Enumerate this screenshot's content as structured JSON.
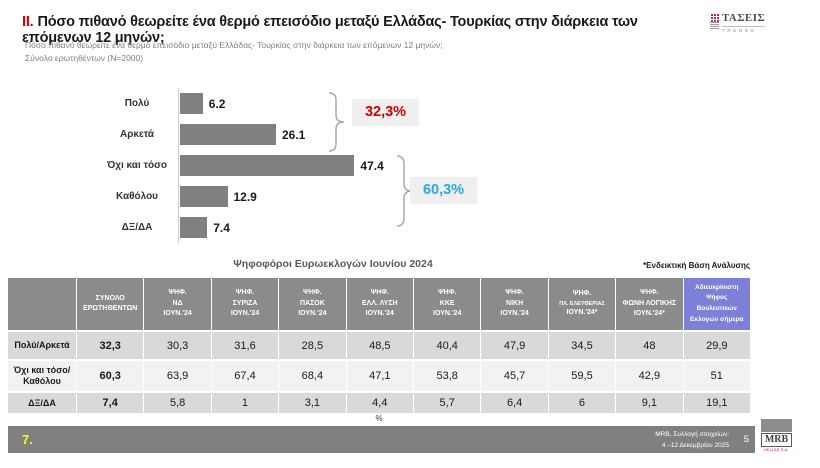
{
  "header": {
    "number": "II.",
    "title": "Πόσο πιθανό θεωρείτε ένα θερμό επεισόδιο μεταξύ Ελλάδας- Τουρκίας στην διάρκεια των επόμενων 12 μηνών;",
    "subtitle": "Πόσο πιθανό θεωρείτε ένα θερμό επεισόδιο μεταξύ Ελλάδας- Τουρκίας στην διάρκεια των επόμενων 12 μηνών;",
    "base": "Σύνολο ερωτηθέντων (N=2000)",
    "logo_name": "ΤΑΣΕΙΣ",
    "logo_sub": "TRENDS"
  },
  "chart_data": {
    "type": "bar",
    "orientation": "horizontal",
    "categories": [
      "Πολύ",
      "Αρκετά",
      "Όχι και τόσο",
      "Καθόλου",
      "ΔΞ/ΔΑ"
    ],
    "values": [
      6.2,
      26.1,
      47.4,
      12.9,
      7.4
    ],
    "value_labels": [
      "6.2",
      "26.1",
      "47.4",
      "12.9",
      "7.4"
    ],
    "xlim": [
      0,
      50
    ],
    "bar_color": "#808080",
    "annotations": [
      {
        "label": "32,3%",
        "color": "#d10000",
        "spans": [
          "Πολύ",
          "Αρκετά"
        ]
      },
      {
        "label": "60,3%",
        "color": "#29a9dc",
        "spans": [
          "Όχι και τόσο",
          "Καθόλου"
        ]
      }
    ]
  },
  "table": {
    "title": "Ψηφοφόροι Ευρωεκλογών Ιουνίου 2024",
    "note": "*Ενδεικτική Βάση Ανάλυσης",
    "percent_label": "%",
    "columns": [
      {
        "lines": [
          "ΣΥΝΟΛΟ",
          "ΕΡΩΤΗΘΕΝΤΩΝ"
        ]
      },
      {
        "lines": [
          "ΨΗΦ.",
          "ΝΔ",
          "ΙΟΥΝ.'24"
        ]
      },
      {
        "lines": [
          "ΨΗΦ.",
          "ΣΥΡΙΖΑ",
          "ΙΟΥΝ.'24"
        ]
      },
      {
        "lines": [
          "ΨΗΦ.",
          "ΠΑΣΟΚ",
          "ΙΟΥΝ.'24"
        ]
      },
      {
        "lines": [
          "ΨΗΦ.",
          "ΕΛΛ. ΛΥΣΗ",
          "ΙΟΥΝ.'24"
        ]
      },
      {
        "lines": [
          "ΨΗΦ.",
          "ΚΚΕ",
          "ΙΟΥΝ.'24"
        ]
      },
      {
        "lines": [
          "ΨΗΦ.",
          "ΝΙΚΗ",
          "ΙΟΥΝ.'24"
        ]
      },
      {
        "lines": [
          "ΨΗΦ.",
          "ΠΛ. ΕΛΕΥΘΕΡΙΑΣ",
          "ΙΟΥΝ.'24*"
        ]
      },
      {
        "lines": [
          "ΨΗΦ.",
          "ΦΩΝΗ ΛΟΓΙΚΗΣ",
          "ΙΟΥΝ.'24*"
        ]
      },
      {
        "lines": [
          "Αδιευκρίνιστη",
          "Ψήφος",
          "Βουλευτικών",
          "Εκλογών σήμερα"
        ],
        "highlight": true
      }
    ],
    "rows": [
      {
        "label": "Πολύ/Αρκετά",
        "values": [
          "32,3",
          "30,3",
          "31,6",
          "28,5",
          "48,5",
          "40,4",
          "47,9",
          "34,5",
          "48",
          "29,9"
        ]
      },
      {
        "label": "Όχι και τόσο/Καθόλου",
        "values": [
          "60,3",
          "63,9",
          "67,4",
          "68,4",
          "47,1",
          "53,8",
          "45,7",
          "59,5",
          "42,9",
          "51"
        ]
      },
      {
        "label": "ΔΞ/ΔΑ",
        "values": [
          "7,4",
          "5,8",
          "1",
          "3,1",
          "4,4",
          "5,7",
          "6,4",
          "6",
          "9,1",
          "19,1"
        ]
      }
    ]
  },
  "footer": {
    "slide_number": "7.",
    "source_line1": "MRB, Συλλογή στοιχείων:",
    "source_line2": "4 –12 Δεκεμβρίου 2025",
    "page_number": "5",
    "logo_text": "MRB",
    "logo_sub": "HELLAS S.A."
  },
  "colors": {
    "accent_red": "#d10000",
    "accent_cyan": "#29a9dc",
    "bar_gray": "#808080",
    "table_header_gray": "#8b8b8b",
    "table_header_highlight_blue": "#7c80d6",
    "row_dark": "#d9d9d9",
    "row_light": "#f2f2f2",
    "footer_bar_gray": "#808080",
    "slide_number_yellow": "#ffff00"
  }
}
